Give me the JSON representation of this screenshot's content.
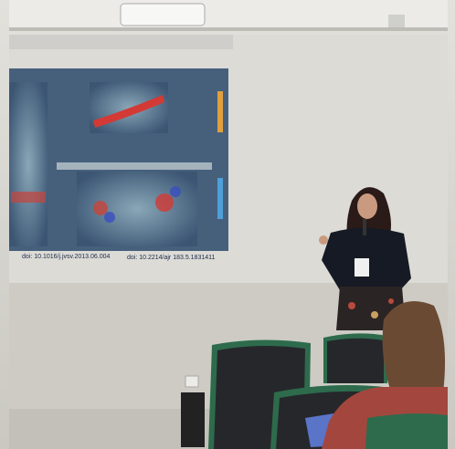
{
  "captions": [
    "doi: 10.1016/j.jvsv.2013.06.004",
    "doi: 10.2214/ajr 183.5.1831411"
  ]
}
